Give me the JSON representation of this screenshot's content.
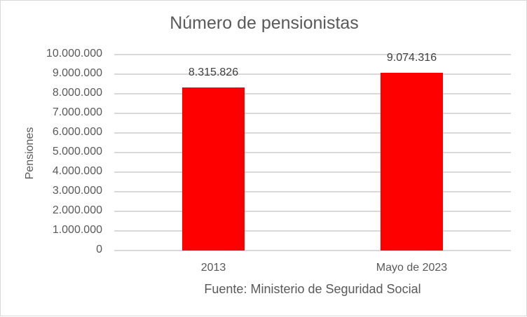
{
  "chart_data": {
    "type": "bar",
    "title": "Número de pensionistas",
    "xlabel": "Fuente: Ministerio de Seguridad Social",
    "ylabel": "Pensiones",
    "categories": [
      "2013",
      "Mayo de 2023"
    ],
    "values": [
      8315826,
      9074316
    ],
    "data_labels": [
      "8.315.826",
      "9.074.316"
    ],
    "ylim": [
      0,
      10000000
    ],
    "yticks": [
      0,
      1000000,
      2000000,
      3000000,
      4000000,
      5000000,
      6000000,
      7000000,
      8000000,
      9000000,
      10000000
    ],
    "ytick_labels": [
      "0",
      "1.000.000",
      "2.000.000",
      "3.000.000",
      "4.000.000",
      "5.000.000",
      "6.000.000",
      "7.000.000",
      "8.000.000",
      "9.000.000",
      "10.000.000"
    ],
    "grid": true,
    "legend": null,
    "bar_color": "#ff0000"
  },
  "colors": {
    "bar": "#ff0000",
    "grid": "#d9d9d9",
    "text": "#595959",
    "border": "#d9d9d9"
  }
}
